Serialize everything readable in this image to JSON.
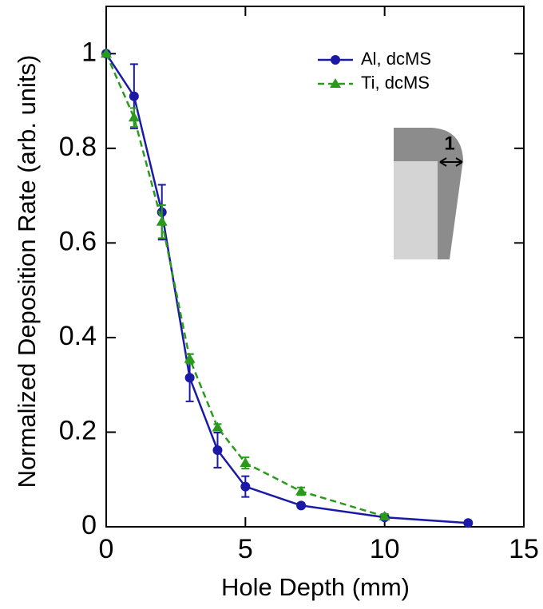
{
  "chart_data": {
    "type": "line",
    "x_label": "Hole Depth (mm)",
    "y_label": "Normalized Deposition Rate  (arb. units)",
    "xlim": [
      0,
      15
    ],
    "xticks": [
      0,
      5,
      10,
      15
    ],
    "ylim": [
      0,
      1.1
    ],
    "yticks": [
      0,
      0.2,
      0.4,
      0.6,
      0.8,
      1
    ],
    "legend": "upper right",
    "inset_label": "1",
    "series": [
      {
        "name": "Al, dcMS",
        "color": "#1a1aa6",
        "marker": "circle",
        "dash": false,
        "x": [
          0,
          1,
          2,
          3,
          4,
          5,
          7,
          10,
          13
        ],
        "values": [
          1,
          0.91,
          0.665,
          0.315,
          0.162,
          0.085,
          0.045,
          0.02,
          0.008
        ],
        "errors": [
          0,
          0.068,
          0.058,
          0.05,
          0.037,
          0.022,
          0.005,
          0.005,
          0.003
        ]
      },
      {
        "name": "Ti, dcMS",
        "color": "#2a9a1a",
        "marker": "triangle",
        "dash": true,
        "x": [
          0,
          1,
          2,
          3,
          4,
          5,
          7,
          10
        ],
        "values": [
          1,
          0.865,
          0.645,
          0.355,
          0.21,
          0.135,
          0.075,
          0.022
        ],
        "errors": [
          0,
          0.02,
          0.035,
          0.01,
          0.007,
          0.012,
          0.008,
          0.005
        ]
      }
    ]
  }
}
